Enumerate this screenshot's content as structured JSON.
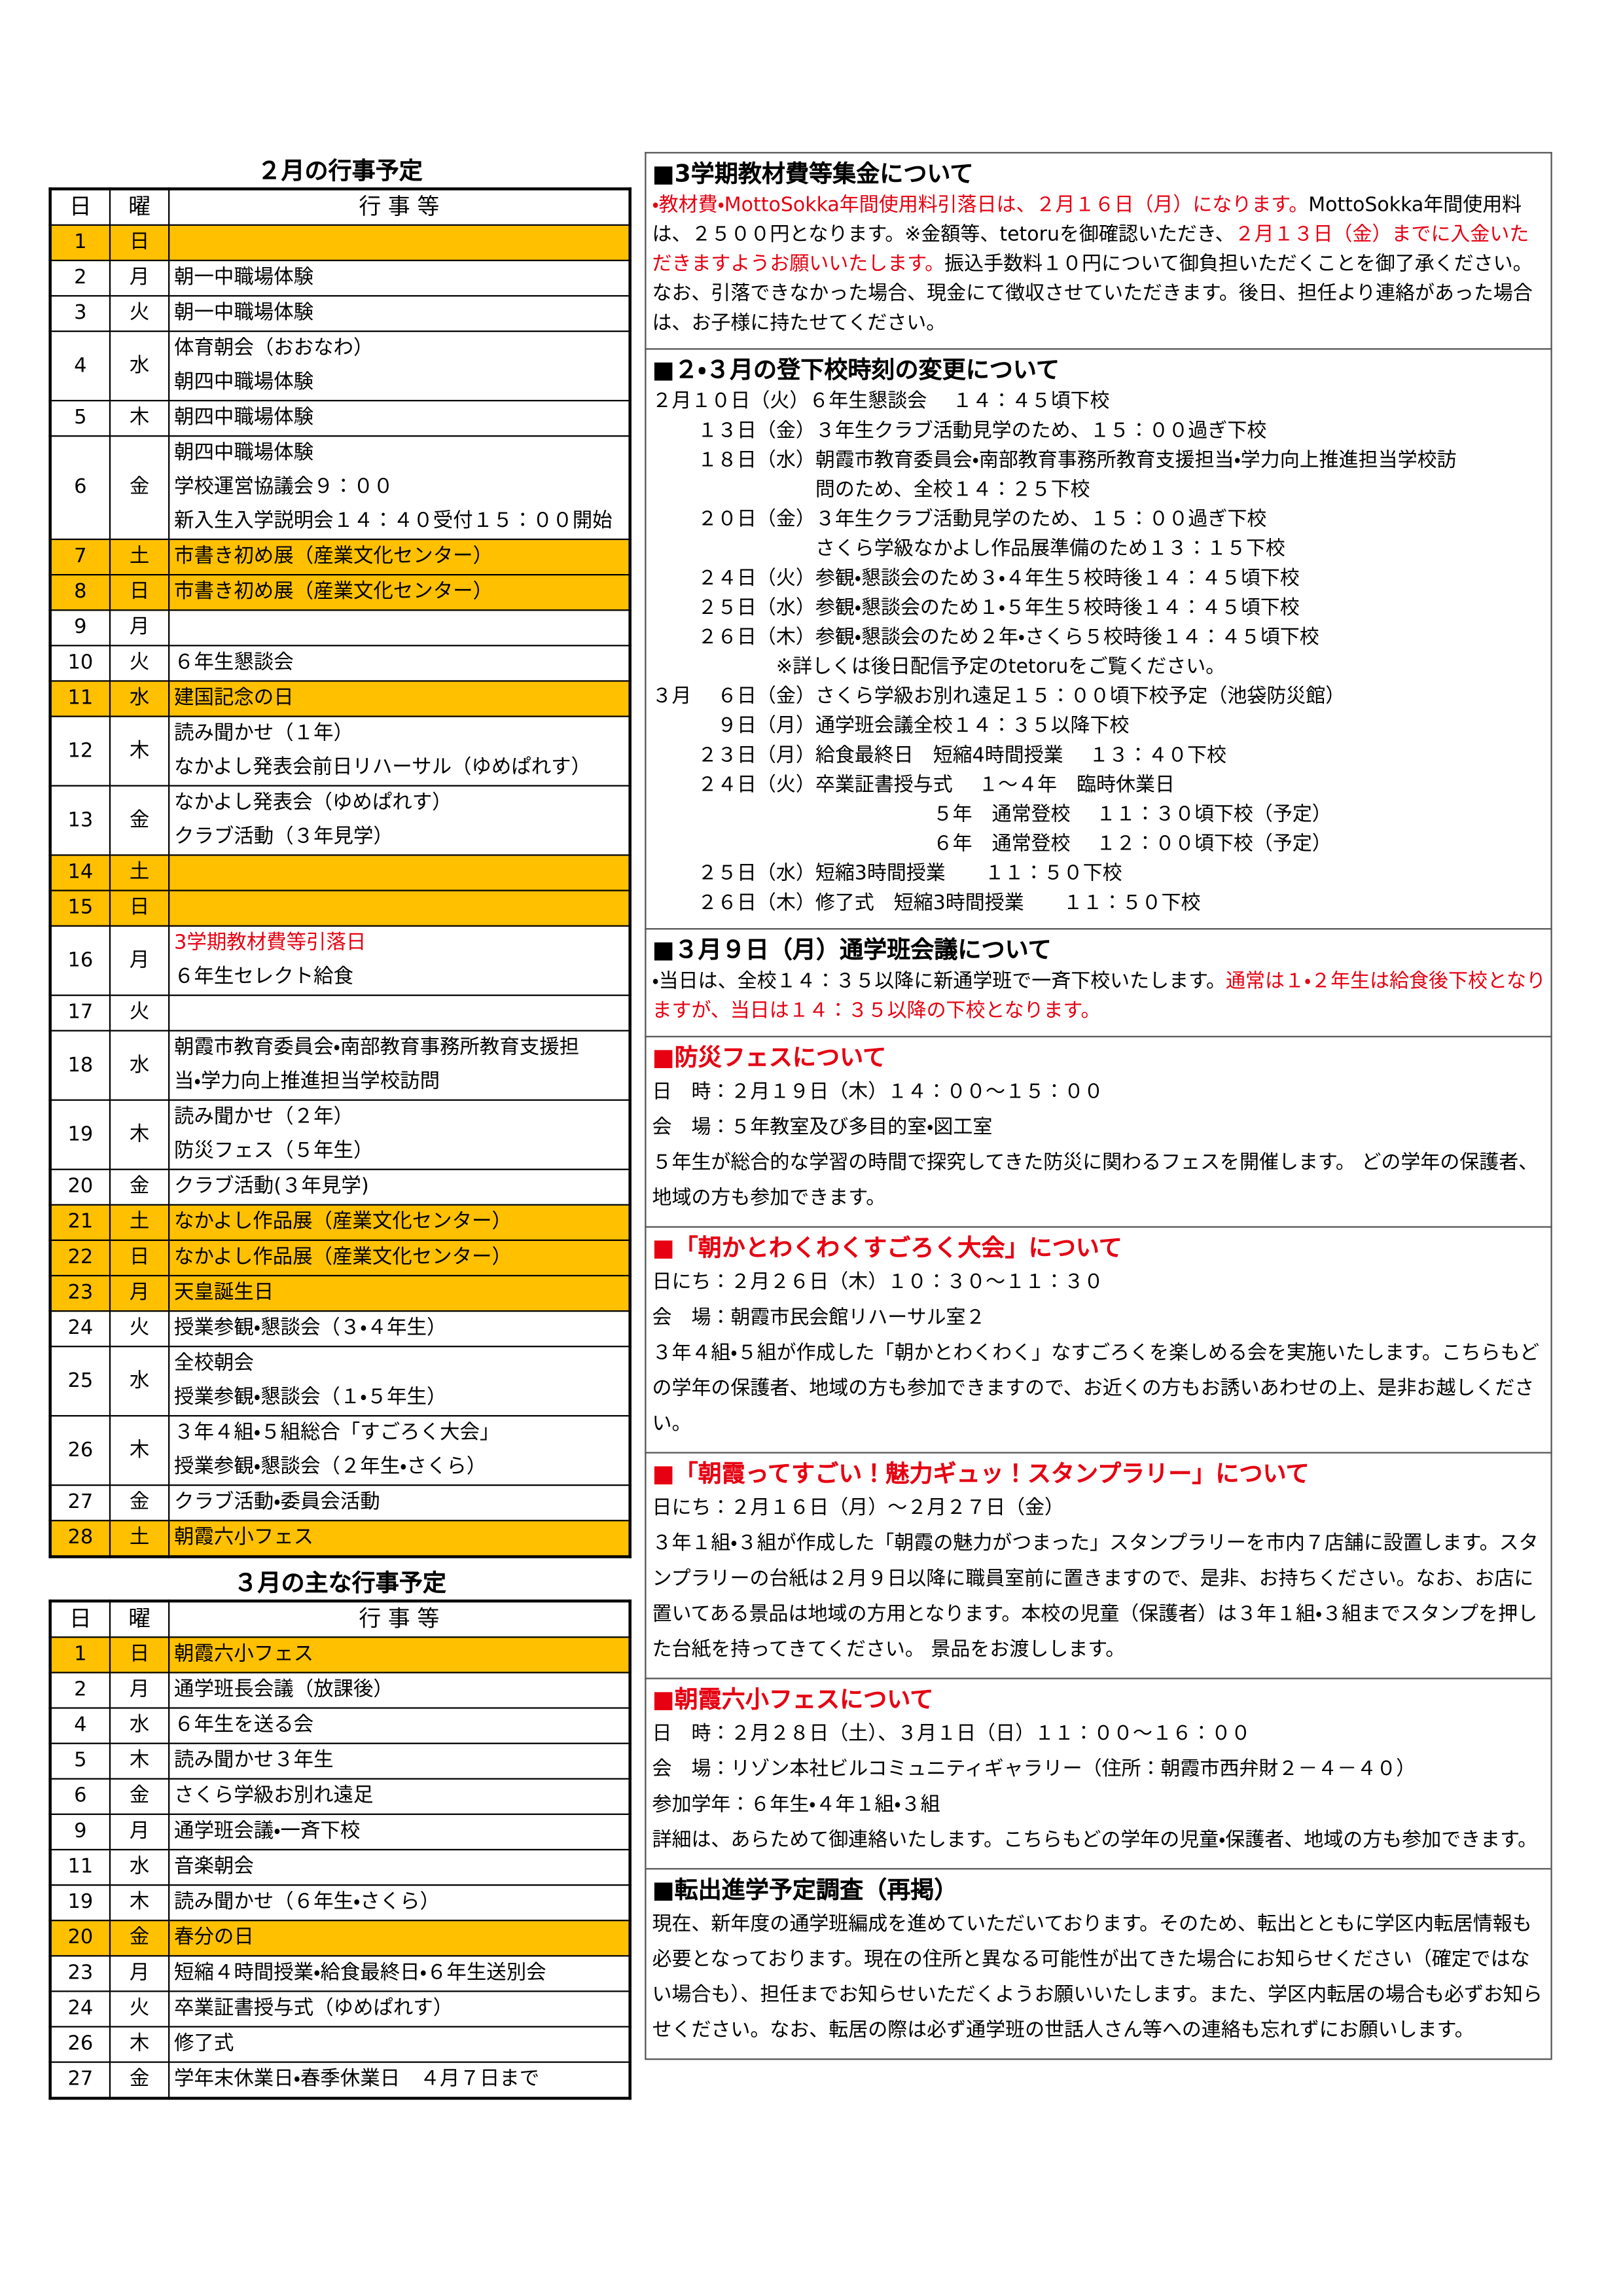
{
  "feb_table": {
    "title": "２月の行事予定",
    "headers": [
      "日",
      "曜",
      "行 事 等"
    ],
    "rows": [
      {
        "day": "1",
        "weekday": "日",
        "lines": [],
        "highlight": true
      },
      {
        "day": "2",
        "weekday": "月",
        "lines": [
          "朝一中職場体験"
        ]
      },
      {
        "day": "3",
        "weekday": "火",
        "lines": [
          "朝一中職場体験"
        ]
      },
      {
        "day": "4",
        "weekday": "水",
        "lines": [
          "体育朝会（おおなわ）",
          "朝四中職場体験"
        ]
      },
      {
        "day": "5",
        "weekday": "木",
        "lines": [
          "朝四中職場体験"
        ]
      },
      {
        "day": "6",
        "weekday": "金",
        "lines": [
          "朝四中職場体験",
          "学校運営協議会９：００",
          "新入生入学説明会１４：４０受付１５：００開始"
        ]
      },
      {
        "day": "7",
        "weekday": "土",
        "lines": [
          "市書き初め展（産業文化センター）"
        ],
        "highlight": true
      },
      {
        "day": "8",
        "weekday": "日",
        "lines": [
          "市書き初め展（産業文化センター）"
        ],
        "highlight": true
      },
      {
        "day": "9",
        "weekday": "月",
        "lines": []
      },
      {
        "day": "10",
        "weekday": "火",
        "lines": [
          "６年生懇談会"
        ]
      },
      {
        "day": "11",
        "weekday": "水",
        "lines": [
          "建国記念の日"
        ],
        "highlight": true
      },
      {
        "day": "12",
        "weekday": "木",
        "lines": [
          "読み聞かせ（１年）",
          "なかよし発表会前日リハーサル（ゆめぱれす）"
        ]
      },
      {
        "day": "13",
        "weekday": "金",
        "lines": [
          "なかよし発表会（ゆめぱれす）",
          "クラブ活動（３年見学）"
        ]
      },
      {
        "day": "14",
        "weekday": "土",
        "lines": [],
        "highlight": true
      },
      {
        "day": "15",
        "weekday": "日",
        "lines": [],
        "highlight": true
      },
      {
        "day": "16",
        "weekday": "月",
        "lines": [
          {
            "text": "3学期教材費等引落日",
            "color": "#e60012"
          },
          "６年生セレクト給食"
        ]
      },
      {
        "day": "17",
        "weekday": "火",
        "lines": []
      },
      {
        "day": "18",
        "weekday": "水",
        "lines": [
          "朝霞市教育委員会・南部教育事務所教育支援担",
          "当・学力向上推進担当学校訪問"
        ]
      },
      {
        "day": "19",
        "weekday": "木",
        "lines": [
          "読み聞かせ（２年）",
          "防災フェス（５年生）"
        ]
      },
      {
        "day": "20",
        "weekday": "金",
        "lines": [
          "クラブ活動(３年見学)"
        ]
      },
      {
        "day": "21",
        "weekday": "土",
        "lines": [
          "なかよし作品展（産業文化センター）"
        ],
        "highlight": true
      },
      {
        "day": "22",
        "weekday": "日",
        "lines": [
          "なかよし作品展（産業文化センター）"
        ],
        "highlight": true
      },
      {
        "day": "23",
        "weekday": "月",
        "lines": [
          "天皇誕生日"
        ],
        "highlight": true
      },
      {
        "day": "24",
        "weekday": "火",
        "lines": [
          "授業参観・懇談会（３・４年生）"
        ]
      },
      {
        "day": "25",
        "weekday": "水",
        "lines": [
          "全校朝会",
          "授業参観・懇談会（１・５年生）"
        ]
      },
      {
        "day": "26",
        "weekday": "木",
        "lines": [
          "３年４組・５組総合「すごろく大会」",
          "授業参観・懇談会（２年生・さくら）"
        ]
      },
      {
        "day": "27",
        "weekday": "金",
        "lines": [
          "クラブ活動・委員会活動"
        ]
      },
      {
        "day": "28",
        "weekday": "土",
        "lines": [
          "朝霞六小フェス"
        ],
        "highlight": true
      }
    ]
  },
  "mar_table": {
    "title": "３月の主な行事予定",
    "headers": [
      "日",
      "曜",
      "行 事 等"
    ],
    "rows": [
      {
        "day": "1",
        "weekday": "日",
        "lines": [
          "朝霞六小フェス"
        ],
        "highlight": true
      },
      {
        "day": "2",
        "weekday": "月",
        "lines": [
          "通学班長会議（放課後）"
        ]
      },
      {
        "day": "4",
        "weekday": "水",
        "lines": [
          "６年生を送る会"
        ]
      },
      {
        "day": "5",
        "weekday": "木",
        "lines": [
          "読み聞かせ３年生"
        ]
      },
      {
        "day": "6",
        "weekday": "金",
        "lines": [
          "さくら学級お別れ遠足"
        ]
      },
      {
        "day": "9",
        "weekday": "月",
        "lines": [
          "通学班会議・一斉下校"
        ]
      },
      {
        "day": "11",
        "weekday": "水",
        "lines": [
          "音楽朝会"
        ]
      },
      {
        "day": "19",
        "weekday": "木",
        "lines": [
          "読み聞かせ（６年生・さくら）"
        ]
      },
      {
        "day": "20",
        "weekday": "金",
        "lines": [
          "春分の日"
        ],
        "highlight": true
      },
      {
        "day": "23",
        "weekday": "月",
        "lines": [
          "短縮４時間授業・給食最終日・６年生送別会"
        ]
      },
      {
        "day": "24",
        "weekday": "火",
        "lines": [
          "卒業証書授与式（ゆめぱれす）"
        ]
      },
      {
        "day": "26",
        "weekday": "木",
        "lines": [
          "修了式"
        ]
      },
      {
        "day": "27",
        "weekday": "金",
        "lines": [
          "学年末休業日・春季休業日　４月７日まで"
        ]
      }
    ]
  },
  "sections": [
    {
      "title": "■3学期教材費等集金について",
      "title_color": "#000000",
      "paragraphs": [
        [
          {
            "text": "・教材費・MottoSokka年間使用料引落日は、２月１６日（月）になります。",
            "color": "#e60012"
          },
          {
            "text": "MottoSokka年間使用料は、２５００円となります。※金額等、tetoruを御確認いただき、",
            "color": "#000000"
          },
          {
            "text": "２月１３日（金）までに入金いただきますようお願いいたします。",
            "color": "#e60012"
          },
          {
            "text": "振込手数料１０円について御負担いただくことを御了承ください。なお、引落できなかった場合、現金にて徴収させていただきます。後日、担任より連絡があった場合は、お子様に持たせてください。",
            "color": "#000000"
          }
        ]
      ]
    },
    {
      "title": "■２・３月の登下校時刻の変更について",
      "title_color": "#000000",
      "paragraphs": [
        "２月１０日（火）６年生懇談会　 １４：４５頃下校",
        "　　 １３日（金）３年生クラブ活動見学のため、１５：００過ぎ下校",
        "　　 １８日（水）朝霞市教育委員会・南部教育事務所教育支援担当・学力向上推進担当学校訪",
        "　　　　　　　　 問のため、全校１４：２５下校",
        "　　 ２０日（金）３年生クラブ活動見学のため、１５：００過ぎ下校",
        "　　　　　　　　 さくら学級なかよし作品展準備のため１３：１５下校",
        "　　 ２４日（火）参観・懇談会のため３・４年生５校時後１４：４５頃下校",
        "　　 ２５日（水）参観・懇談会のため１・５年生５校時後１４：４５頃下校",
        "　　 ２６日（木）参観・懇談会のため２年・さくら５校時後１４：４５頃下校",
        "　　　　　　 ※詳しくは後日配信予定のtetoruをご覧ください。",
        "３月　 ６日（金）さくら学級お別れ遠足１５：００頃下校予定（池袋防災館）",
        "　　　 ９日（月）通学班会議全校１４：３５以降下校",
        "　　 ２３日（月）給食最終日　短縮4時間授業　 １３：４０下校",
        "　　 ２４日（火）卒業証書授与式　 １～４年　臨時休業日",
        "　　　　　　　　　　　　　　 ５年　通常登校　 １１：３０頃下校（予定）",
        "　　　　　　　　　　　　　　 ６年　通常登校　 １２：００頃下校（予定）",
        "　　 ２５日（水）短縮3時間授業　　１１：５０下校",
        "　　 ２６日（木）修了式　短縮3時間授業　　１１：５０下校"
      ]
    },
    {
      "title": "■３月９日（月）通学班会議について",
      "title_color": "#000000",
      "paragraphs": [
        [
          {
            "text": "・当日は、全校１４：３５以降に新通学班で一斉下校いたします。",
            "color": "#000000"
          },
          {
            "text": "通常は１・２年生は給食後下校となりますが、当日は１４：３５以降の下校となります。",
            "color": "#e60012"
          }
        ]
      ]
    },
    {
      "title": "■防災フェスについて",
      "title_color": "#e60012",
      "paragraphs": [
        "日　時：２月１９日（木）１４：００～１５：００",
        "会　場：５年教室及び多目的室・図工室",
        "５年生が総合的な学習の時間で探究してきた防災に関わるフェスを開催します。 どの学年の保護者、地域の方も参加できます。"
      ]
    },
    {
      "title": "■「朝かとわくわくすごろく大会」について",
      "title_color": "#e60012",
      "paragraphs": [
        "日にち：２月２６日（木）１０：３０～１１：３０",
        "会　場：朝霞市民会館リハーサル室２",
        "３年４組・５組が作成した「朝かとわくわく」なすごろくを楽しめる会を実施いたします。こちらもどの学年の保護者、地域の方も参加できますので、お近くの方もお誘いあわせの上、是非お越しください。"
      ]
    },
    {
      "title": "■「朝霞ってすごい！魅力ギュッ！スタンプラリー」について",
      "title_color": "#e60012",
      "paragraphs": [
        "日にち：２月１６日（月）～２月２７日（金）",
        "３年１組・３組が作成した「朝霞の魅力がつまった」スタンプラリーを市内７店舗に設置します。スタンプラリーの台紙は２月９日以降に職員室前に置きますので、是非、お持ちください。なお、お店に置いてある景品は地域の方用となります。本校の児童（保護者）は３年１組・３組までスタンプを押した台紙を持ってきてください。 景品をお渡しします。"
      ]
    },
    {
      "title": "■朝霞六小フェスについて",
      "title_color": "#e60012",
      "paragraphs": [
        "日　時：２月２８日（土）、３月１日（日）１１：００～１６：００",
        "会　場：リゾン本社ビルコミュニティギャラリー（住所：朝霞市西弁財２－４－４０）",
        "参加学年：６年生・４年１組・３組",
        "詳細は、あらためて御連絡いたします。こちらもどの学年の児童・保護者、地域の方も参加できます。"
      ]
    },
    {
      "title": "■転出進学予定調査（再掲）",
      "title_color": "#000000",
      "paragraphs": [
        "現在、新年度の通学班編成を進めていただいております。そのため、転出とともに学区内転居情報も必要となっております。現在の住所と異なる可能性が出てきた場合にお知らせください（確定ではない場合も）、担任までお知らせいただくようお願いいたします。また、学区内転居の場合も必ずお知らせください。なお、転居の際は必ず通学班の世話人さん等への連絡も忘れずにお願いします。"
      ]
    }
  ]
}
